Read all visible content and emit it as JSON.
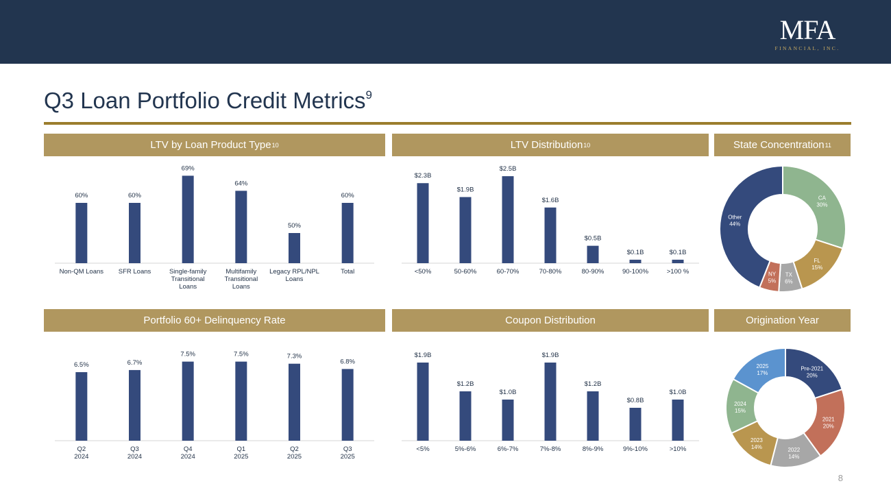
{
  "logo": {
    "mark": "MFA",
    "sub": "FINANCIAL, INC."
  },
  "page": {
    "title": "Q3 Loan Portfolio Credit Metrics",
    "title_sup": "9",
    "number": "8"
  },
  "colors": {
    "navy": "#344a7c",
    "gold_band": "#b0975f",
    "gold_rule": "#9b7d2d",
    "topbar": "#22354f"
  },
  "panels": {
    "ltv_product": {
      "title": "LTV by Loan Product Type",
      "sup": "10"
    },
    "ltv_dist": {
      "title": "LTV Distribution",
      "sup": "10"
    },
    "state": {
      "title": "State Concentration",
      "sup": "11"
    },
    "delinquency": {
      "title": "Portfolio 60+ Delinquency Rate",
      "sup": ""
    },
    "coupon": {
      "title": "Coupon Distribution",
      "sup": ""
    },
    "origination": {
      "title": "Origination Year",
      "sup": ""
    }
  },
  "chart_data": [
    {
      "id": "ltv_product",
      "type": "bar",
      "categories": [
        [
          "Non-QM Loans"
        ],
        [
          "SFR Loans"
        ],
        [
          "Single-family",
          "Transitional",
          "Loans"
        ],
        [
          "Multifamily",
          "Transitional",
          "Loans"
        ],
        [
          "Legacy RPL/NPL",
          "Loans"
        ],
        [
          "Total"
        ]
      ],
      "values": [
        60,
        60,
        69,
        64,
        50,
        60
      ],
      "labels": [
        "60%",
        "60%",
        "69%",
        "64%",
        "50%",
        "60%"
      ],
      "ylim": [
        40,
        70
      ],
      "color": "#344a7c"
    },
    {
      "id": "ltv_dist",
      "type": "bar",
      "categories": [
        [
          "<50%"
        ],
        [
          "50-60%"
        ],
        [
          "60-70%"
        ],
        [
          "70-80%"
        ],
        [
          "80-90%"
        ],
        [
          "90-100%"
        ],
        [
          ">100 %"
        ]
      ],
      "values": [
        2.3,
        1.9,
        2.5,
        1.6,
        0.5,
        0.1,
        0.1
      ],
      "labels": [
        "$2.3B",
        "$1.9B",
        "$2.5B",
        "$1.6B",
        "$0.5B",
        "$0.1B",
        "$0.1B"
      ],
      "ylim": [
        0,
        2.6
      ],
      "color": "#344a7c"
    },
    {
      "id": "state",
      "type": "pie",
      "donut": true,
      "slices": [
        {
          "name": "CA",
          "value": 30,
          "label": "30%",
          "color": "#8fb58f",
          "text": "#ffffff"
        },
        {
          "name": "FL",
          "value": 15,
          "label": "15%",
          "color": "#b9964f",
          "text": "#ffffff"
        },
        {
          "name": "TX",
          "value": 6,
          "label": "6%",
          "color": "#a7a7a7",
          "text": "#ffffff"
        },
        {
          "name": "NY",
          "value": 5,
          "label": "5%",
          "color": "#c2705a",
          "text": "#ffffff"
        },
        {
          "name": "Other",
          "value": 44,
          "label": "44%",
          "color": "#344a7c",
          "text": "#ffffff"
        }
      ]
    },
    {
      "id": "delinquency",
      "type": "bar",
      "categories": [
        [
          "Q2",
          "2024"
        ],
        [
          "Q3",
          "2024"
        ],
        [
          "Q4",
          "2024"
        ],
        [
          "Q1",
          "2025"
        ],
        [
          "Q2",
          "2025"
        ],
        [
          "Q3",
          "2025"
        ]
      ],
      "values": [
        6.5,
        6.7,
        7.5,
        7.5,
        7.3,
        6.8
      ],
      "labels": [
        "6.5%",
        "6.7%",
        "7.5%",
        "7.5%",
        "7.3%",
        "6.8%"
      ],
      "ylim": [
        0,
        7.8
      ],
      "color": "#344a7c"
    },
    {
      "id": "coupon",
      "type": "bar",
      "categories": [
        [
          "<5%"
        ],
        [
          "5%-6%"
        ],
        [
          "6%-7%"
        ],
        [
          "7%-8%"
        ],
        [
          "8%-9%"
        ],
        [
          "9%-10%"
        ],
        [
          ">10%"
        ]
      ],
      "values": [
        1.9,
        1.2,
        1.0,
        1.9,
        1.2,
        0.8,
        1.0
      ],
      "labels": [
        "$1.9B",
        "$1.2B",
        "$1.0B",
        "$1.9B",
        "$1.2B",
        "$0.8B",
        "$1.0B"
      ],
      "ylim": [
        0,
        2.0
      ],
      "color": "#344a7c"
    },
    {
      "id": "origination",
      "type": "pie",
      "donut": true,
      "slices": [
        {
          "name": "Pre-2021",
          "value": 20,
          "label": "20%",
          "color": "#344a7c",
          "text": "#ffffff"
        },
        {
          "name": "2021",
          "value": 20,
          "label": "20%",
          "color": "#c2705a",
          "text": "#ffffff"
        },
        {
          "name": "2022",
          "value": 14,
          "label": "14%",
          "color": "#a7a7a7",
          "text": "#ffffff"
        },
        {
          "name": "2023",
          "value": 14,
          "label": "14%",
          "color": "#b9964f",
          "text": "#ffffff"
        },
        {
          "name": "2024",
          "value": 15,
          "label": "15%",
          "color": "#8fb58f",
          "text": "#ffffff"
        },
        {
          "name": "2025",
          "value": 17,
          "label": "17%",
          "color": "#5b93cf",
          "text": "#ffffff"
        }
      ]
    }
  ]
}
